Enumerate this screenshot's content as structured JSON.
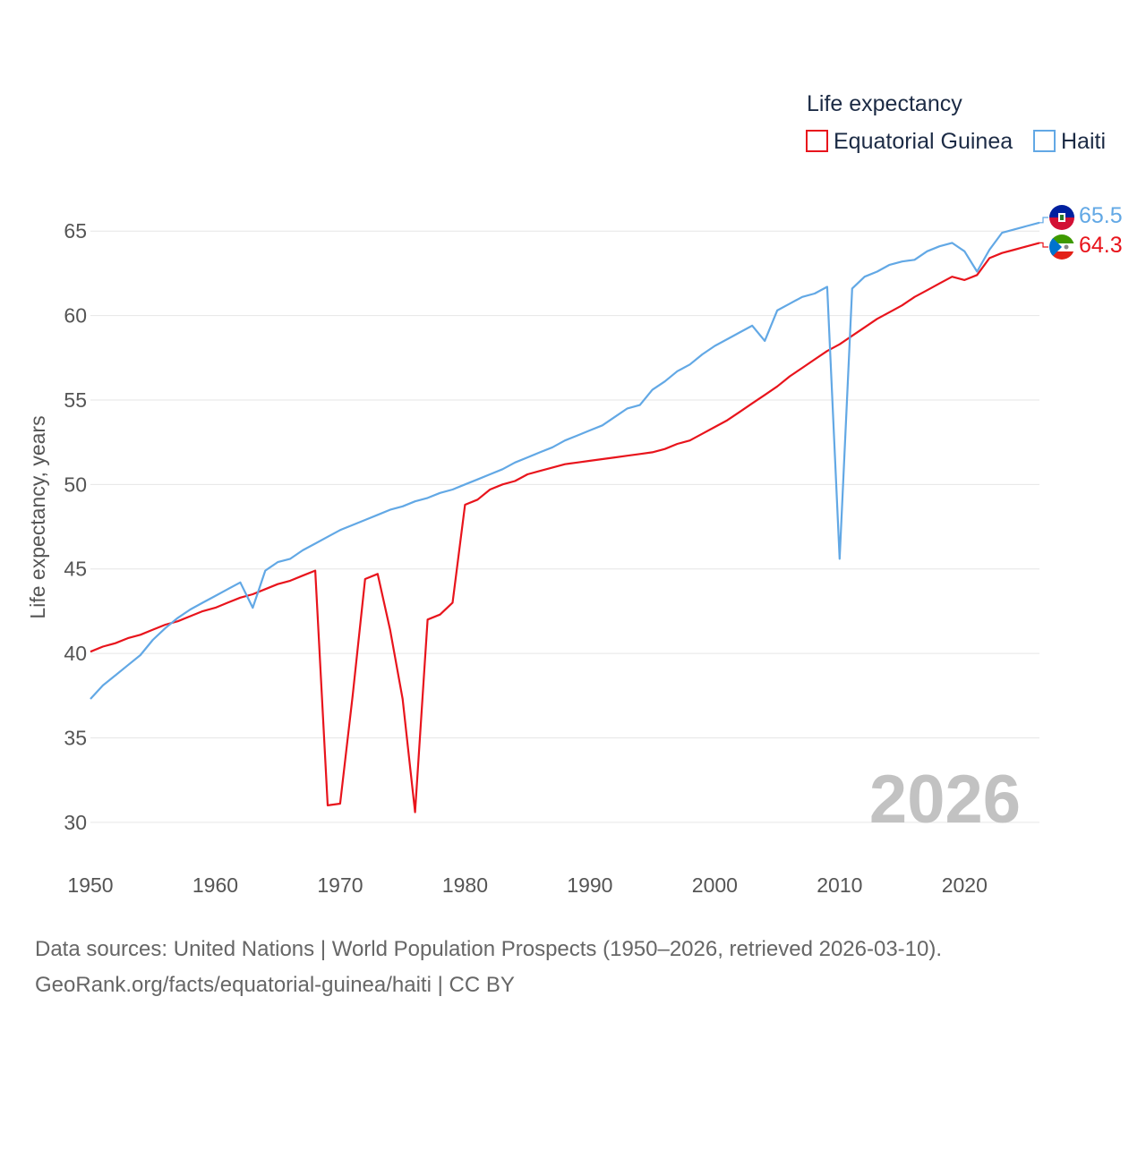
{
  "chart_data": {
    "type": "line",
    "title": "",
    "xlabel": "",
    "ylabel": "Life expectancy, years",
    "xlim": [
      1950,
      2026
    ],
    "ylim": [
      27.5,
      67.5
    ],
    "x_ticks": [
      1950,
      1960,
      1970,
      1980,
      1990,
      2000,
      2010,
      2020
    ],
    "y_ticks": [
      30,
      35,
      40,
      45,
      50,
      55,
      60,
      65
    ],
    "grid": true,
    "legend_title": "Life expectancy",
    "legend_position": "top-right",
    "year_label": "2026",
    "x": [
      1950,
      1951,
      1952,
      1953,
      1954,
      1955,
      1956,
      1957,
      1958,
      1959,
      1960,
      1961,
      1962,
      1963,
      1964,
      1965,
      1966,
      1967,
      1968,
      1969,
      1970,
      1971,
      1972,
      1973,
      1974,
      1975,
      1976,
      1977,
      1978,
      1979,
      1980,
      1981,
      1982,
      1983,
      1984,
      1985,
      1986,
      1987,
      1988,
      1989,
      1990,
      1991,
      1992,
      1993,
      1994,
      1995,
      1996,
      1997,
      1998,
      1999,
      2000,
      2001,
      2002,
      2003,
      2004,
      2005,
      2006,
      2007,
      2008,
      2009,
      2010,
      2011,
      2012,
      2013,
      2014,
      2015,
      2016,
      2017,
      2018,
      2019,
      2020,
      2021,
      2022,
      2023,
      2024,
      2025,
      2026
    ],
    "series": [
      {
        "name": "Equatorial Guinea",
        "color": "#e8141c",
        "end_label": "64.3",
        "values": [
          40.1,
          40.4,
          40.6,
          40.9,
          41.1,
          41.4,
          41.7,
          41.9,
          42.2,
          42.5,
          42.7,
          43.0,
          43.3,
          43.5,
          43.8,
          44.1,
          44.3,
          44.6,
          44.9,
          31.0,
          31.1,
          37.5,
          44.4,
          44.7,
          41.4,
          37.3,
          30.6,
          42.0,
          42.3,
          43.0,
          48.8,
          49.1,
          49.7,
          50.0,
          50.2,
          50.6,
          50.8,
          51.0,
          51.2,
          51.3,
          51.4,
          51.5,
          51.6,
          51.7,
          51.8,
          51.9,
          52.1,
          52.4,
          52.6,
          53.0,
          53.4,
          53.8,
          54.3,
          54.8,
          55.3,
          55.8,
          56.4,
          56.9,
          57.4,
          57.9,
          58.3,
          58.8,
          59.3,
          59.8,
          60.2,
          60.6,
          61.1,
          61.5,
          61.9,
          62.3,
          62.1,
          62.4,
          63.4,
          63.7,
          63.9,
          64.1,
          64.3
        ]
      },
      {
        "name": "Haiti",
        "color": "#62a8e5",
        "end_label": "65.5",
        "values": [
          37.3,
          38.1,
          38.7,
          39.3,
          39.9,
          40.8,
          41.5,
          42.1,
          42.6,
          43.0,
          43.4,
          43.8,
          44.2,
          42.7,
          44.9,
          45.4,
          45.6,
          46.1,
          46.5,
          46.9,
          47.3,
          47.6,
          47.9,
          48.2,
          48.5,
          48.7,
          49.0,
          49.2,
          49.5,
          49.7,
          50.0,
          50.3,
          50.6,
          50.9,
          51.3,
          51.6,
          51.9,
          52.2,
          52.6,
          52.9,
          53.2,
          53.5,
          54.0,
          54.5,
          54.7,
          55.6,
          56.1,
          56.7,
          57.1,
          57.7,
          58.2,
          58.6,
          59.0,
          59.4,
          58.5,
          60.3,
          60.7,
          61.1,
          61.3,
          61.7,
          45.6,
          61.6,
          62.3,
          62.6,
          63.0,
          63.2,
          63.3,
          63.8,
          64.1,
          64.3,
          63.8,
          62.6,
          63.9,
          64.9,
          65.1,
          65.3,
          65.5
        ]
      }
    ]
  },
  "footer": {
    "line1": "Data sources: United Nations | World Population Prospects (1950–2026, retrieved 2026-03-10).",
    "line2": "GeoRank.org/facts/equatorial-guinea/haiti | CC BY"
  }
}
